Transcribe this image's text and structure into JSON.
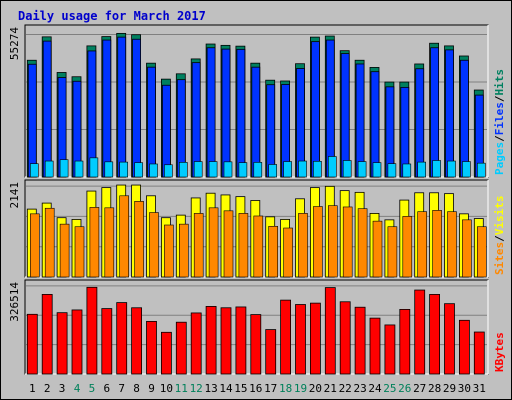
{
  "title": "Daily usage for March 2017",
  "colors": {
    "background": "#c0c0c0",
    "title": "#0000cc",
    "axis_label": "#000000",
    "weekend_day": "#00805a",
    "hits": "#008060",
    "files": "#0033ff",
    "pages": "#00ccff",
    "visits": "#ffff00",
    "sites": "#ff8800",
    "kbytes": "#ff0000",
    "separator": "#000000"
  },
  "chart_data": [
    {
      "type": "bar",
      "panel": "hits-files-pages",
      "ymax_label": "55274",
      "ylim": [
        0,
        55274
      ],
      "legend": [
        {
          "text": "Pages",
          "color": "#00ccff"
        },
        {
          "text": "/",
          "color": "#000000"
        },
        {
          "text": "Files",
          "color": "#0033ff"
        },
        {
          "text": "/",
          "color": "#000000"
        },
        {
          "text": "Hits",
          "color": "#008060"
        }
      ],
      "categories": [
        "1",
        "2",
        "3",
        "4",
        "5",
        "6",
        "7",
        "8",
        "9",
        "10",
        "11",
        "12",
        "13",
        "14",
        "15",
        "16",
        "17",
        "18",
        "19",
        "20",
        "21",
        "22",
        "23",
        "24",
        "25",
        "26",
        "27",
        "28",
        "29",
        "30",
        "31"
      ],
      "series": [
        {
          "name": "Hits",
          "color": "#008060",
          "values": [
            43900,
            52700,
            39300,
            37700,
            49300,
            52800,
            54000,
            53500,
            42800,
            36800,
            38800,
            44400,
            50000,
            49500,
            49200,
            42800,
            36400,
            36100,
            42600,
            52600,
            53000,
            47500,
            43900,
            41200,
            35700,
            35700,
            42500,
            50300,
            49300,
            45500,
            32700
          ]
        },
        {
          "name": "Files",
          "color": "#0033ff",
          "values": [
            42400,
            51100,
            37400,
            36000,
            47400,
            51500,
            52600,
            51800,
            41300,
            34500,
            36600,
            43000,
            48600,
            48100,
            48000,
            41300,
            34700,
            34800,
            40800,
            50900,
            51500,
            46400,
            42500,
            39600,
            33900,
            33700,
            40700,
            48600,
            47800,
            43900,
            30800
          ]
        },
        {
          "name": "Pages",
          "color": "#00ccff",
          "values": [
            5000,
            6000,
            6500,
            6000,
            7200,
            5700,
            5600,
            5400,
            4900,
            4600,
            5500,
            5800,
            5800,
            5700,
            5400,
            5500,
            4700,
            5800,
            6000,
            5900,
            7700,
            6200,
            5800,
            5400,
            5000,
            4900,
            5600,
            6200,
            6000,
            5800,
            5200
          ]
        }
      ]
    },
    {
      "type": "bar",
      "panel": "visits-sites",
      "ymax_label": "2141",
      "ylim": [
        0,
        2141
      ],
      "legend": [
        {
          "text": "Sites",
          "color": "#ff8800"
        },
        {
          "text": "/",
          "color": "#000000"
        },
        {
          "text": "Visits",
          "color": "#ffff00"
        }
      ],
      "categories": [
        "1",
        "2",
        "3",
        "4",
        "5",
        "6",
        "7",
        "8",
        "9",
        "10",
        "11",
        "12",
        "13",
        "14",
        "15",
        "16",
        "17",
        "18",
        "19",
        "20",
        "21",
        "22",
        "23",
        "24",
        "25",
        "26",
        "27",
        "28",
        "29",
        "30",
        "31"
      ],
      "series": [
        {
          "name": "Visits",
          "color": "#ffff00",
          "values": [
            1580,
            1720,
            1380,
            1340,
            2000,
            2080,
            2140,
            2140,
            1890,
            1380,
            1440,
            1840,
            1950,
            1910,
            1870,
            1780,
            1400,
            1340,
            1820,
            2080,
            2110,
            2010,
            1970,
            1480,
            1330,
            1790,
            1960,
            1960,
            1940,
            1470,
            1360
          ]
        },
        {
          "name": "Sites",
          "color": "#ff8800",
          "values": [
            1470,
            1600,
            1230,
            1170,
            1620,
            1610,
            1890,
            1760,
            1500,
            1210,
            1230,
            1480,
            1610,
            1540,
            1480,
            1420,
            1180,
            1140,
            1480,
            1640,
            1660,
            1630,
            1590,
            1300,
            1170,
            1410,
            1520,
            1550,
            1520,
            1330,
            1170
          ]
        }
      ]
    },
    {
      "type": "bar",
      "panel": "kbytes",
      "ymax_label": "326514",
      "ylim": [
        0,
        326514
      ],
      "legend": [
        {
          "text": "KBytes",
          "color": "#ff0000"
        }
      ],
      "categories": [
        "1",
        "2",
        "3",
        "4",
        "5",
        "6",
        "7",
        "8",
        "9",
        "10",
        "11",
        "12",
        "13",
        "14",
        "15",
        "16",
        "17",
        "18",
        "19",
        "20",
        "21",
        "22",
        "23",
        "24",
        "25",
        "26",
        "27",
        "28",
        "29",
        "30",
        "31"
      ],
      "series": [
        {
          "name": "KBytes",
          "color": "#ff0000",
          "values": [
            219000,
            292000,
            225000,
            235000,
            318000,
            240000,
            262000,
            243000,
            193000,
            153000,
            190000,
            224000,
            248000,
            243000,
            246000,
            218000,
            163000,
            271000,
            255000,
            260000,
            317000,
            265000,
            245000,
            205000,
            180000,
            237000,
            308000,
            292000,
            258000,
            197000,
            154000
          ]
        }
      ]
    }
  ],
  "days": [
    {
      "label": "1",
      "weekend": false
    },
    {
      "label": "2",
      "weekend": false
    },
    {
      "label": "3",
      "weekend": false
    },
    {
      "label": "4",
      "weekend": true
    },
    {
      "label": "5",
      "weekend": true
    },
    {
      "label": "6",
      "weekend": false
    },
    {
      "label": "7",
      "weekend": false
    },
    {
      "label": "8",
      "weekend": false
    },
    {
      "label": "9",
      "weekend": false
    },
    {
      "label": "10",
      "weekend": false
    },
    {
      "label": "11",
      "weekend": true
    },
    {
      "label": "12",
      "weekend": true
    },
    {
      "label": "13",
      "weekend": false
    },
    {
      "label": "14",
      "weekend": false
    },
    {
      "label": "15",
      "weekend": false
    },
    {
      "label": "16",
      "weekend": false
    },
    {
      "label": "17",
      "weekend": false
    },
    {
      "label": "18",
      "weekend": true
    },
    {
      "label": "19",
      "weekend": true
    },
    {
      "label": "20",
      "weekend": false
    },
    {
      "label": "21",
      "weekend": false
    },
    {
      "label": "22",
      "weekend": false
    },
    {
      "label": "23",
      "weekend": false
    },
    {
      "label": "24",
      "weekend": false
    },
    {
      "label": "25",
      "weekend": true
    },
    {
      "label": "26",
      "weekend": true
    },
    {
      "label": "27",
      "weekend": false
    },
    {
      "label": "28",
      "weekend": false
    },
    {
      "label": "29",
      "weekend": false
    },
    {
      "label": "30",
      "weekend": false
    },
    {
      "label": "31",
      "weekend": false
    }
  ]
}
